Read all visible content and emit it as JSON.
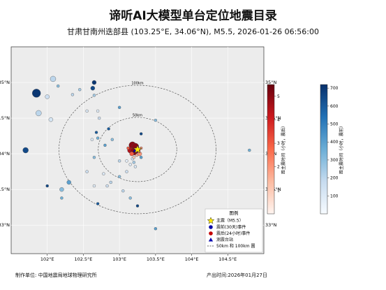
{
  "title": "谛听AI大模型单台定位地震目录",
  "subtitle": "甘肃甘南州迭部县 (103.25°E, 34.06°N), M5.5, 2026-01-26 06:56:00",
  "footer": {
    "left": "制作单位: 中国地震局地球物理研究所",
    "right": "产出时间:2026年01月27日"
  },
  "chart_data": {
    "type": "scatter",
    "title": "谛听AI大模型单台定位地震目录",
    "xlim": [
      101.5,
      105.0
    ],
    "ylim": [
      32.6,
      35.5
    ],
    "xticks": [
      102.0,
      102.5,
      103.0,
      103.5,
      104.0,
      104.5
    ],
    "xtick_labels": [
      "102°E",
      "102.5°E",
      "103°E",
      "103.5°E",
      "104°E",
      "104.5°E"
    ],
    "yticks": [
      33.0,
      33.5,
      34.0,
      34.5,
      35.0
    ],
    "ytick_labels_left": [
      "33°N",
      "33.5°N",
      "34°N",
      "34.5°N",
      "35°N"
    ],
    "ytick_labels_right": [
      "33°N",
      "33.5°N",
      "34°N",
      "34.5°N",
      "35°N"
    ],
    "grid": true,
    "mainshock": {
      "lon": 103.25,
      "lat": 34.06,
      "mag": 5.5
    },
    "station": {
      "lon": 103.22,
      "lat": 34.05
    },
    "rings": [
      {
        "radius_km": 50,
        "label": "50km"
      },
      {
        "radius_km": 100,
        "label": "100km"
      }
    ],
    "events_30d": [
      {
        "lon": 101.7,
        "lat": 34.05,
        "h": 650,
        "s": 4
      },
      {
        "lon": 101.88,
        "lat": 34.57,
        "h": 200,
        "s": 4
      },
      {
        "lon": 102.0,
        "lat": 34.8,
        "h": 150,
        "s": 3
      },
      {
        "lon": 102.05,
        "lat": 34.48,
        "h": 120,
        "s": 3
      },
      {
        "lon": 102.08,
        "lat": 35.05,
        "h": 200,
        "s": 4
      },
      {
        "lon": 101.85,
        "lat": 34.85,
        "h": 700,
        "s": 6
      },
      {
        "lon": 102.15,
        "lat": 34.95,
        "h": 300,
        "s": 2
      },
      {
        "lon": 102.35,
        "lat": 34.83,
        "h": 200,
        "s": 2
      },
      {
        "lon": 102.45,
        "lat": 34.9,
        "h": 250,
        "s": 2
      },
      {
        "lon": 102.55,
        "lat": 34.6,
        "h": 100,
        "s": 2
      },
      {
        "lon": 102.63,
        "lat": 34.92,
        "h": 650,
        "s": 3
      },
      {
        "lon": 102.65,
        "lat": 35.0,
        "h": 700,
        "s": 3
      },
      {
        "lon": 102.65,
        "lat": 34.82,
        "h": 250,
        "s": 2
      },
      {
        "lon": 102.7,
        "lat": 34.6,
        "h": 80,
        "s": 2
      },
      {
        "lon": 102.72,
        "lat": 34.5,
        "h": 150,
        "s": 2
      },
      {
        "lon": 102.68,
        "lat": 34.3,
        "h": 600,
        "s": 2
      },
      {
        "lon": 102.7,
        "lat": 34.22,
        "h": 350,
        "s": 2
      },
      {
        "lon": 102.62,
        "lat": 34.2,
        "h": 100,
        "s": 2
      },
      {
        "lon": 102.85,
        "lat": 34.35,
        "h": 600,
        "s": 2
      },
      {
        "lon": 102.8,
        "lat": 34.12,
        "h": 400,
        "s": 2
      },
      {
        "lon": 102.65,
        "lat": 33.95,
        "h": 300,
        "s": 2
      },
      {
        "lon": 102.55,
        "lat": 33.75,
        "h": 150,
        "s": 2
      },
      {
        "lon": 102.78,
        "lat": 33.72,
        "h": 100,
        "s": 2
      },
      {
        "lon": 102.88,
        "lat": 33.6,
        "h": 200,
        "s": 2
      },
      {
        "lon": 102.65,
        "lat": 33.55,
        "h": 80,
        "s": 2
      },
      {
        "lon": 102.2,
        "lat": 33.5,
        "h": 300,
        "s": 3
      },
      {
        "lon": 102.3,
        "lat": 33.6,
        "h": 400,
        "s": 3
      },
      {
        "lon": 102.0,
        "lat": 33.55,
        "h": 650,
        "s": 2
      },
      {
        "lon": 102.2,
        "lat": 33.38,
        "h": 350,
        "s": 2
      },
      {
        "lon": 102.7,
        "lat": 33.3,
        "h": 600,
        "s": 2
      },
      {
        "lon": 102.83,
        "lat": 33.55,
        "h": 150,
        "s": 2
      },
      {
        "lon": 103.0,
        "lat": 33.68,
        "h": 300,
        "s": 2
      },
      {
        "lon": 103.05,
        "lat": 33.48,
        "h": 200,
        "s": 2
      },
      {
        "lon": 103.1,
        "lat": 33.75,
        "h": 150,
        "s": 2
      },
      {
        "lon": 103.15,
        "lat": 33.85,
        "h": 100,
        "s": 2
      },
      {
        "lon": 103.15,
        "lat": 33.38,
        "h": 300,
        "s": 2
      },
      {
        "lon": 103.25,
        "lat": 33.27,
        "h": 650,
        "s": 2
      },
      {
        "lon": 103.2,
        "lat": 33.88,
        "h": 250,
        "s": 2
      },
      {
        "lon": 103.18,
        "lat": 33.93,
        "h": 150,
        "s": 2
      },
      {
        "lon": 103.22,
        "lat": 33.82,
        "h": 120,
        "s": 2
      },
      {
        "lon": 103.1,
        "lat": 33.9,
        "h": 60,
        "s": 2
      },
      {
        "lon": 103.0,
        "lat": 34.65,
        "h": 400,
        "s": 2
      },
      {
        "lon": 103.3,
        "lat": 34.28,
        "h": 650,
        "s": 2
      },
      {
        "lon": 103.5,
        "lat": 34.47,
        "h": 300,
        "s": 2
      },
      {
        "lon": 103.5,
        "lat": 32.95,
        "h": 400,
        "s": 2
      },
      {
        "lon": 104.8,
        "lat": 34.05,
        "h": 350,
        "s": 2
      },
      {
        "lon": 103.0,
        "lat": 33.9,
        "h": 200,
        "s": 2
      },
      {
        "lon": 102.9,
        "lat": 34.2,
        "h": 300,
        "s": 2
      },
      {
        "lon": 103.3,
        "lat": 33.95,
        "h": 400,
        "s": 2
      }
    ],
    "events_24h": [
      {
        "lon": 103.18,
        "lat": 34.12,
        "h": 5,
        "s": 5
      },
      {
        "lon": 103.22,
        "lat": 34.1,
        "h": 5,
        "s": 5
      },
      {
        "lon": 103.15,
        "lat": 34.05,
        "h": 4.5,
        "s": 4
      },
      {
        "lon": 103.25,
        "lat": 34.05,
        "h": 4,
        "s": 4
      },
      {
        "lon": 103.2,
        "lat": 34.03,
        "h": 5,
        "s": 5
      },
      {
        "lon": 103.17,
        "lat": 34.0,
        "h": 3,
        "s": 3
      },
      {
        "lon": 103.28,
        "lat": 34.0,
        "h": 2,
        "s": 3
      },
      {
        "lon": 103.24,
        "lat": 33.98,
        "h": 1.5,
        "s": 2
      },
      {
        "lon": 103.2,
        "lat": 33.95,
        "h": 1,
        "s": 2
      },
      {
        "lon": 103.3,
        "lat": 34.08,
        "h": 2,
        "s": 2
      },
      {
        "lon": 103.12,
        "lat": 34.08,
        "h": 3,
        "s": 2
      }
    ],
    "legend": {
      "title": "图例",
      "placement": "bottom-right",
      "items": [
        "主震（M5.5）",
        "震前(30天)事件",
        "震后(24小时)事件",
        "测震台站",
        "50km 和 100km 圆"
      ]
    },
    "colorbar_24h": {
      "label": "距主震时间（小时，震后）",
      "range": [
        0,
        5.5
      ],
      "ticks": [
        1,
        2,
        3,
        4,
        5
      ],
      "colors": [
        "#fff5f0",
        "#fcbba1",
        "#fb6a4a",
        "#cb181d",
        "#67000d"
      ]
    },
    "colorbar_30d": {
      "label": "距主震时间（小时，震前）",
      "range": [
        0,
        720
      ],
      "ticks": [
        100,
        200,
        300,
        400,
        500,
        600,
        700
      ],
      "colors": [
        "#f7fbff",
        "#c6dbef",
        "#6baed6",
        "#2171b5",
        "#08306b"
      ]
    }
  }
}
